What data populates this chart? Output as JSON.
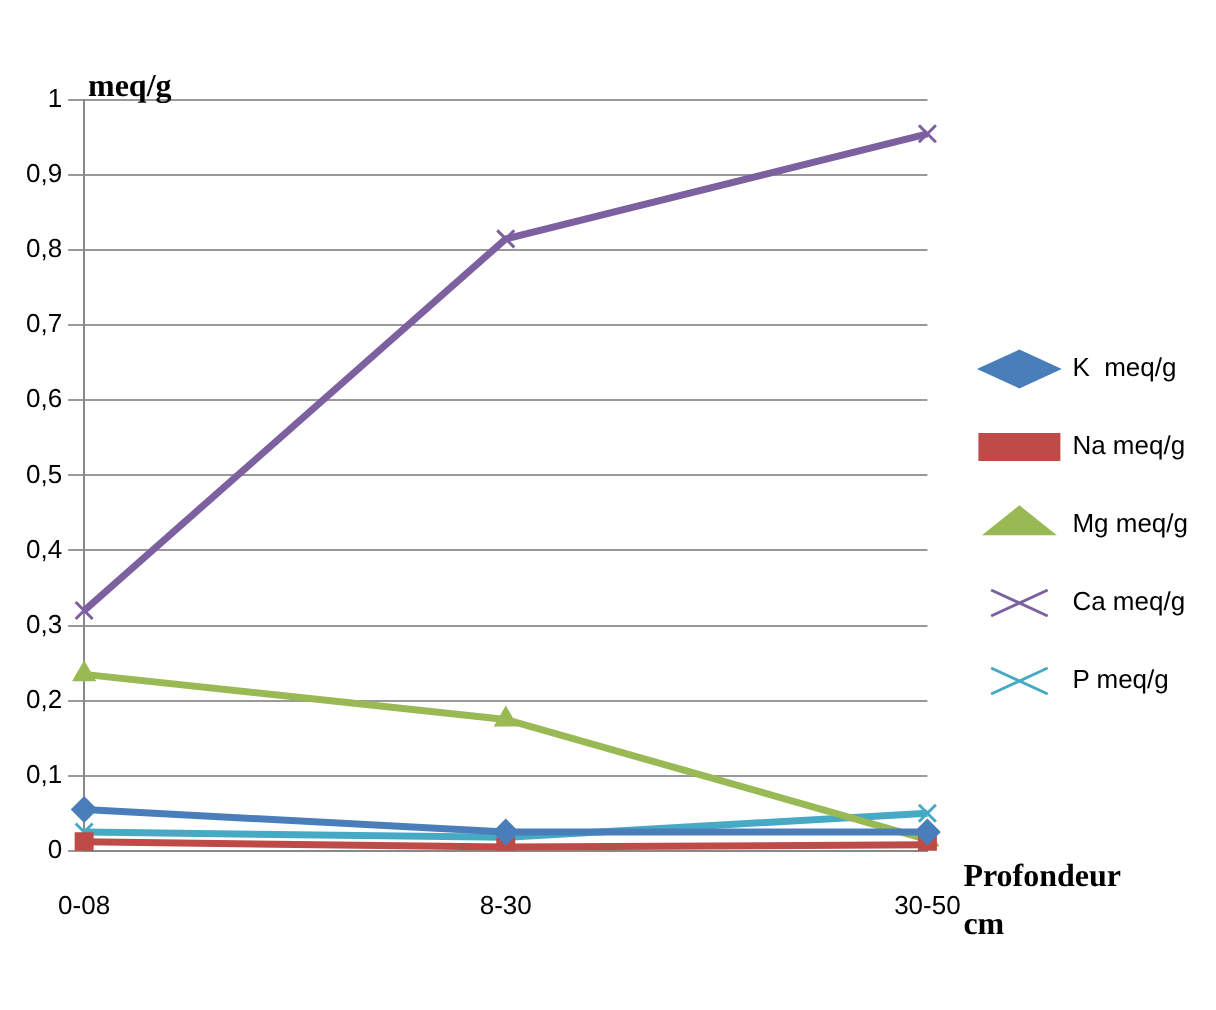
{
  "chart_data": {
    "type": "line",
    "ylabel": "meq/g",
    "xlabel": "Profondeur cm",
    "categories": [
      "0-08",
      "8-30",
      "30-50"
    ],
    "series": [
      {
        "name": "K  meq/g",
        "color": "#4a7ebb",
        "marker": "diamond",
        "values": [
          0.055,
          0.025,
          0.025
        ]
      },
      {
        "name": "Na meq/g",
        "color": "#be4b48",
        "marker": "square",
        "values": [
          0.012,
          0.005,
          0.008
        ]
      },
      {
        "name": "Mg meq/g",
        "color": "#98b954",
        "marker": "triangle",
        "values": [
          0.235,
          0.175,
          0.015
        ]
      },
      {
        "name": "Ca meq/g",
        "color": "#7d60a0",
        "marker": "cross",
        "values": [
          0.32,
          0.815,
          0.955
        ]
      },
      {
        "name": "P meq/g",
        "color": "#46aac5",
        "marker": "cross",
        "values": [
          0.025,
          0.018,
          0.05
        ]
      }
    ],
    "ylim": [
      0,
      1
    ],
    "yticks": [
      0,
      {
        "value": 0.1,
        "label": "0,1"
      },
      {
        "value": 0.2,
        "label": "0,2"
      },
      {
        "value": 0.3,
        "label": "0,3"
      },
      {
        "value": 0.4,
        "label": "0,4"
      },
      {
        "value": 0.5,
        "label": "0,5"
      },
      {
        "value": 0.6,
        "label": "0,6"
      },
      {
        "value": 0.7,
        "label": "0,7"
      },
      {
        "value": 0.8,
        "label": "0,8"
      },
      {
        "value": 0.9,
        "label": "0,9"
      },
      1
    ],
    "grid": "y",
    "legend": "right"
  }
}
